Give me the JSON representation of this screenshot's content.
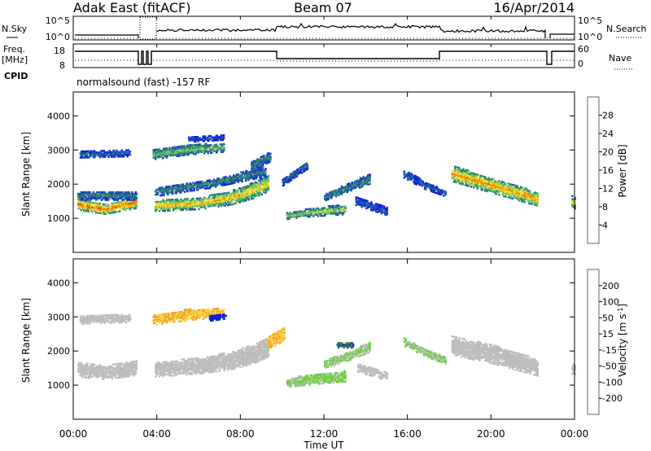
{
  "header": {
    "title": "Adak East (fitACF)",
    "beam": "Beam 07",
    "date": "16/Apr/2014"
  },
  "noise_panel": {
    "left_label": "N.Sky",
    "right_label": "N.Search",
    "left_ticks": [
      "10^5",
      "10^0"
    ],
    "right_ticks": [
      "10^5",
      "10^0"
    ]
  },
  "freq_panel": {
    "left_label_1": "Freq.",
    "left_label_2": "[MHz]",
    "right_label": "Nave",
    "left_ticks": [
      "18",
      "8"
    ],
    "right_ticks": [
      "60",
      "0"
    ]
  },
  "cpid": {
    "label": "CPID",
    "value": "normalsound (fast) -157 RF"
  },
  "x_axis": {
    "label": "Time UT",
    "ticks": [
      "00:00",
      "04:00",
      "08:00",
      "12:00",
      "16:00",
      "20:00",
      "00:00"
    ]
  },
  "colors": {
    "power": [
      "#0a1ee0",
      "#1f4fb0",
      "#2f8a6a",
      "#6fc070",
      "#f0e020",
      "#f08a10",
      "#e83a1a",
      "#cc0000"
    ],
    "velocity": [
      "#e00000",
      "#e85a10",
      "#f0a020",
      "#f5d24a",
      "#bdbdbd",
      "#6fd040",
      "#2f8a3a",
      "#2a3aa0",
      "#0a1ee0"
    ],
    "ground_scatter": "#bdbdbd"
  },
  "chart_data": [
    {
      "type": "heatmap",
      "name": "power",
      "x_range_hours_ut": [
        0,
        24
      ],
      "ylabel": "Slant Range [km]",
      "yticks": [
        1000,
        2000,
        3000,
        4000
      ],
      "ylim": [
        0,
        4700
      ],
      "colorbar": {
        "label": "Power [dB]",
        "tick_labels": [
          "4",
          "8",
          "12",
          "16",
          "20",
          "24",
          "28"
        ],
        "range": [
          0,
          32
        ]
      },
      "bands": [
        {
          "t": [
            0.2,
            1.5,
            3.0
          ],
          "r_center": [
            1400,
            1250,
            1450
          ],
          "r_half": [
            170,
            140,
            170
          ],
          "value": 24
        },
        {
          "t": [
            0.2,
            3.0
          ],
          "r_center": [
            1650,
            1650
          ],
          "r_half": [
            130,
            130
          ],
          "value": 10
        },
        {
          "t": [
            3.9,
            6.0,
            7.5,
            8.6,
            9.3
          ],
          "r_center": [
            1350,
            1420,
            1580,
            1800,
            2000
          ],
          "r_half": [
            160,
            170,
            200,
            230,
            230
          ],
          "value": 20
        },
        {
          "t": [
            3.9,
            6.5,
            9.2
          ],
          "r_center": [
            1750,
            2000,
            2350
          ],
          "r_half": [
            120,
            130,
            140
          ],
          "value": 10
        },
        {
          "t": [
            0.3,
            2.7
          ],
          "r_center": [
            2850,
            2900
          ],
          "r_half": [
            90,
            100
          ],
          "value": 8
        },
        {
          "t": [
            3.8,
            5.5,
            7.2
          ],
          "r_center": [
            2850,
            3000,
            3050
          ],
          "r_half": [
            140,
            150,
            120
          ],
          "value": 14
        },
        {
          "t": [
            5.5,
            7.2
          ],
          "r_center": [
            3300,
            3350
          ],
          "r_half": [
            80,
            70
          ],
          "value": 6
        },
        {
          "t": [
            8.5,
            9.4
          ],
          "r_center": [
            2500,
            2800
          ],
          "r_half": [
            150,
            150
          ],
          "value": 10
        },
        {
          "t": [
            10.2,
            11.3,
            13.0
          ],
          "r_center": [
            1050,
            1150,
            1250
          ],
          "r_half": [
            90,
            120,
            150
          ],
          "value": 16
        },
        {
          "t": [
            12.0,
            13.2,
            14.2
          ],
          "r_center": [
            1600,
            1900,
            2150
          ],
          "r_half": [
            100,
            120,
            150
          ],
          "value": 10
        },
        {
          "t": [
            10.0,
            11.2
          ],
          "r_center": [
            2050,
            2550
          ],
          "r_half": [
            110,
            110
          ],
          "value": 8
        },
        {
          "t": [
            13.5,
            15.0
          ],
          "r_center": [
            1500,
            1200
          ],
          "r_half": [
            130,
            130
          ],
          "value": 6
        },
        {
          "t": [
            15.8,
            16.8,
            17.8
          ],
          "r_center": [
            2300,
            1950,
            1700
          ],
          "r_half": [
            130,
            110,
            80
          ],
          "value": 7
        },
        {
          "t": [
            18.1,
            20.0,
            22.2
          ],
          "r_center": [
            2300,
            1950,
            1550
          ],
          "r_half": [
            230,
            220,
            200
          ],
          "value": 22
        },
        {
          "t": [
            23.85,
            24.0
          ],
          "r_center": [
            1450,
            1450
          ],
          "r_half": [
            180,
            180
          ],
          "value": 18
        }
      ]
    },
    {
      "type": "heatmap",
      "name": "velocity",
      "x_range_hours_ut": [
        0,
        24
      ],
      "ylabel": "Slant Range [km]",
      "yticks": [
        1000,
        2000,
        3000,
        4000
      ],
      "ylim": [
        0,
        4700
      ],
      "colorbar": {
        "label": "Velocity [m s^-1]",
        "tick_labels": [
          "200",
          "100",
          "50",
          "15",
          "-15",
          "-50",
          "-100",
          "-200"
        ],
        "range": [
          -250,
          250
        ]
      },
      "bands": [
        {
          "t": [
            0.2,
            1.5,
            3.0
          ],
          "r_center": [
            1450,
            1350,
            1500
          ],
          "r_half": [
            220,
            200,
            220
          ],
          "value": 0
        },
        {
          "t": [
            3.9,
            6.0,
            7.5,
            8.6,
            9.3
          ],
          "r_center": [
            1450,
            1550,
            1700,
            1900,
            2100
          ],
          "r_half": [
            220,
            230,
            260,
            280,
            280
          ],
          "value": 0
        },
        {
          "t": [
            0.3,
            2.7
          ],
          "r_center": [
            2900,
            2950
          ],
          "r_half": [
            120,
            120
          ],
          "value": 0
        },
        {
          "t": [
            3.8,
            5.5,
            7.2
          ],
          "r_center": [
            2900,
            3050,
            3100
          ],
          "r_half": [
            150,
            160,
            130
          ],
          "value": -80
        },
        {
          "t": [
            6.5,
            7.3
          ],
          "r_center": [
            2950,
            3000
          ],
          "r_half": [
            80,
            70
          ],
          "value": 220
        },
        {
          "t": [
            9.3,
            10.1
          ],
          "r_center": [
            2200,
            2500
          ],
          "r_half": [
            180,
            180
          ],
          "value": -80
        },
        {
          "t": [
            10.2,
            11.3,
            13.0
          ],
          "r_center": [
            1050,
            1150,
            1250
          ],
          "r_half": [
            120,
            150,
            160
          ],
          "value": 40
        },
        {
          "t": [
            12.0,
            13.2,
            14.2
          ],
          "r_center": [
            1600,
            1850,
            2100
          ],
          "r_half": [
            110,
            130,
            140
          ],
          "value": 30
        },
        {
          "t": [
            12.6,
            13.4
          ],
          "r_center": [
            2150,
            2150
          ],
          "r_half": [
            70,
            70
          ],
          "value": 140
        },
        {
          "t": [
            13.6,
            15.0
          ],
          "r_center": [
            1500,
            1250
          ],
          "r_half": [
            130,
            130
          ],
          "value": 0
        },
        {
          "t": [
            15.8,
            16.8,
            17.8
          ],
          "r_center": [
            2250,
            1950,
            1700
          ],
          "r_half": [
            120,
            110,
            90
          ],
          "value": 30
        },
        {
          "t": [
            18.1,
            20.0,
            22.2
          ],
          "r_center": [
            2150,
            1900,
            1500
          ],
          "r_half": [
            280,
            280,
            240
          ],
          "value": 0
        },
        {
          "t": [
            23.85,
            24.0
          ],
          "r_center": [
            1450,
            1450
          ],
          "r_half": [
            180,
            180
          ],
          "value": 0
        }
      ]
    }
  ]
}
